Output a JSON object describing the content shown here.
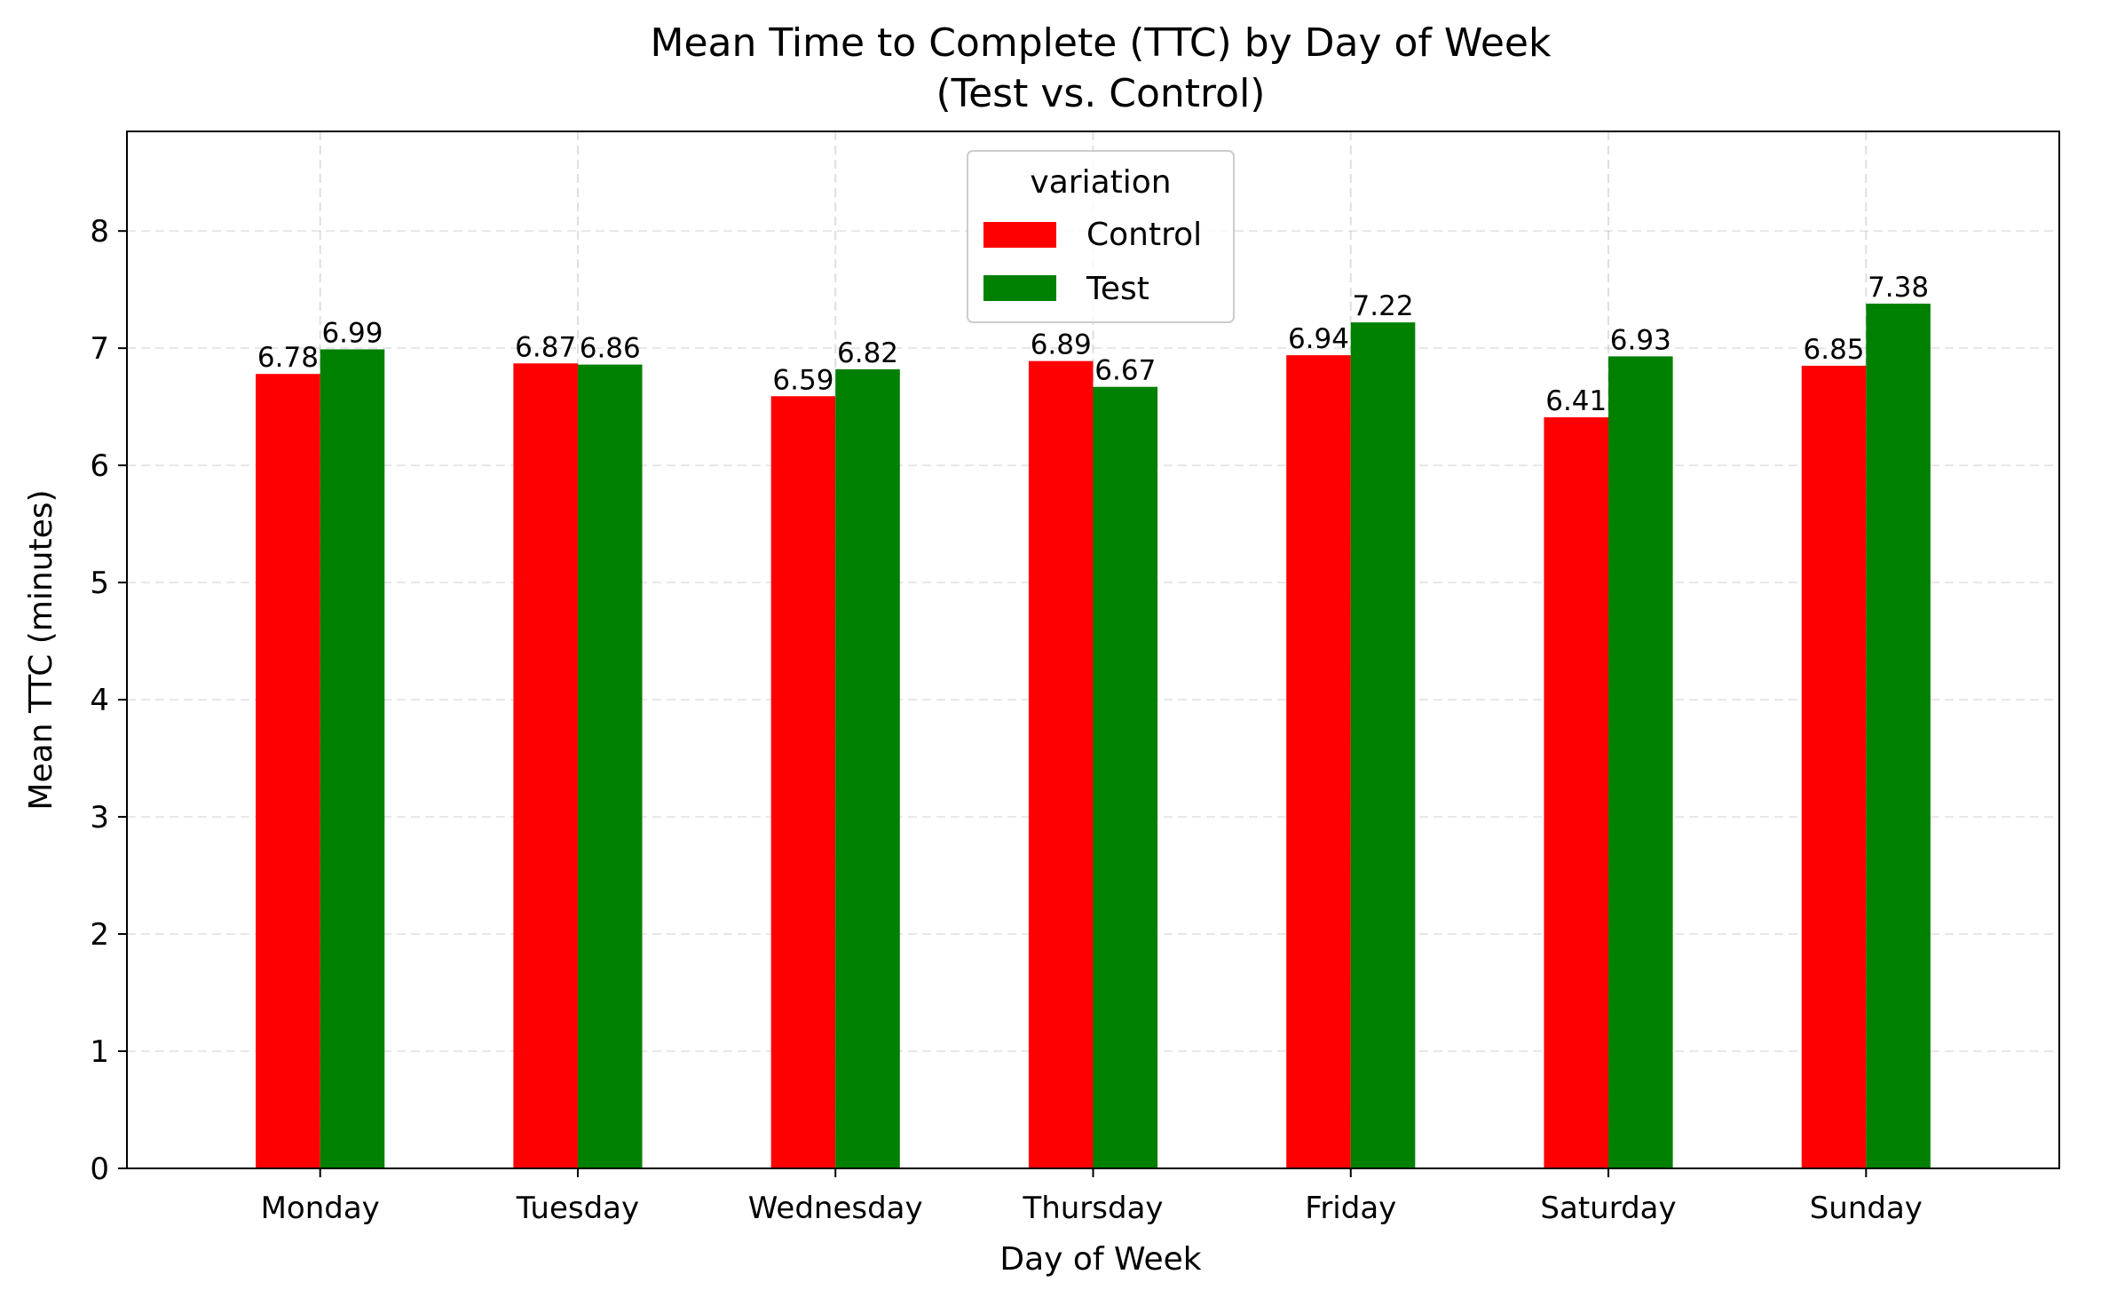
{
  "chart_data": {
    "type": "bar",
    "title_lines": [
      "Mean Time to Complete (TTC) by Day of Week",
      "(Test vs. Control)"
    ],
    "xlabel": "Day of Week",
    "ylabel": "Mean TTC (minutes)",
    "categories": [
      "Monday",
      "Tuesday",
      "Wednesday",
      "Thursday",
      "Friday",
      "Saturday",
      "Sunday"
    ],
    "series": [
      {
        "name": "Control",
        "color": "#ff0000",
        "values": [
          6.78,
          6.87,
          6.59,
          6.89,
          6.94,
          6.41,
          6.85
        ]
      },
      {
        "name": "Test",
        "color": "#008000",
        "values": [
          6.99,
          6.86,
          6.82,
          6.67,
          7.22,
          6.93,
          7.38
        ]
      }
    ],
    "ylim": [
      0,
      8.85
    ],
    "yticks": [
      0,
      1,
      2,
      3,
      4,
      5,
      6,
      7,
      8
    ],
    "grid": true,
    "legend": {
      "title": "variation",
      "placement": "top-center"
    }
  }
}
